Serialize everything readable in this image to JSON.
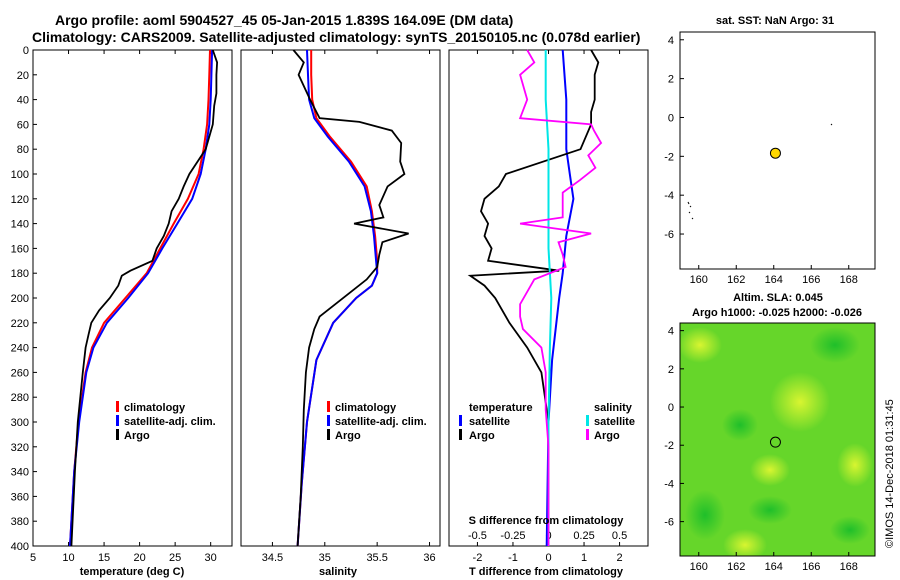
{
  "titles": {
    "line1": "Argo profile: aoml 5904527_45 05-Jan-2015 1.839S 164.09E (DM data)",
    "line2": "Climatology: CARS2009. Satellite-adjusted climatology: synTS_20150105.nc (0.078d earlier)"
  },
  "watermark": "©IMOS 14-Dec-2018 01:31:45",
  "colors": {
    "clim": "#ff0000",
    "sat": "#0000ff",
    "argo": "#000000",
    "sal_sat": "#00e6e6",
    "sal_diff": "#ff00ff"
  },
  "chart_data": [
    {
      "type": "line",
      "name": "temperature_profile",
      "xlabel": "temperature (deg C)",
      "ylabel": "",
      "xlim": [
        5,
        33
      ],
      "ylim": [
        400,
        0
      ],
      "xticks": [
        5,
        10,
        15,
        20,
        25,
        30
      ],
      "yticks": [
        0,
        20,
        40,
        60,
        80,
        100,
        120,
        140,
        160,
        180,
        200,
        220,
        240,
        260,
        280,
        300,
        320,
        340,
        360,
        380,
        400
      ],
      "legend": [
        "climatology",
        "satellite-adj. clim.",
        "Argo"
      ],
      "series": [
        {
          "name": "climatology",
          "color": "#ff0000",
          "depth": [
            0,
            20,
            40,
            60,
            80,
            100,
            120,
            140,
            160,
            180,
            200,
            220,
            240,
            260,
            300,
            340,
            400
          ],
          "values": [
            29.9,
            29.8,
            29.7,
            29.5,
            29.0,
            28.3,
            26.8,
            24.8,
            22.9,
            21.0,
            18.0,
            15.0,
            13.3,
            12.4,
            11.4,
            10.8,
            10.2
          ]
        },
        {
          "name": "satellite-adj. clim.",
          "color": "#0000ff",
          "depth": [
            0,
            20,
            40,
            60,
            80,
            100,
            120,
            140,
            160,
            180,
            200,
            220,
            240,
            260,
            300,
            340,
            400
          ],
          "values": [
            30.2,
            30.1,
            30.0,
            29.8,
            29.3,
            28.6,
            27.4,
            25.3,
            23.2,
            21.2,
            18.4,
            15.4,
            13.5,
            12.5,
            11.5,
            10.8,
            10.2
          ]
        },
        {
          "name": "Argo",
          "color": "#000000",
          "depth": [
            0,
            10,
            20,
            35,
            45,
            60,
            80,
            100,
            110,
            120,
            130,
            140,
            150,
            160,
            170,
            178,
            182,
            190,
            200,
            210,
            220,
            230,
            240,
            260,
            300,
            340,
            400
          ],
          "values": [
            30.3,
            30.9,
            30.8,
            30.8,
            30.5,
            30.3,
            29.3,
            27.0,
            26.2,
            25.5,
            24.5,
            24.1,
            23.4,
            22.4,
            21.8,
            18.7,
            17.5,
            17.0,
            15.8,
            14.3,
            13.2,
            12.8,
            12.4,
            12.0,
            11.3,
            10.9,
            10.4
          ]
        }
      ]
    },
    {
      "type": "line",
      "name": "salinity_profile",
      "xlabel": "salinity",
      "xlim": [
        34.2,
        36.1
      ],
      "ylim": [
        400,
        0
      ],
      "xticks": [
        34.5,
        35,
        35.5,
        36
      ],
      "legend": [
        "climatology",
        "satellite-adj. clim.",
        "Argo"
      ],
      "series": [
        {
          "name": "climatology",
          "color": "#ff0000",
          "depth": [
            0,
            20,
            40,
            55,
            70,
            90,
            110,
            130,
            150,
            170,
            180,
            190,
            200,
            220,
            250,
            300,
            350,
            400
          ],
          "values": [
            34.87,
            34.87,
            34.88,
            34.92,
            35.05,
            35.25,
            35.4,
            35.45,
            35.48,
            35.5,
            35.5,
            35.45,
            35.3,
            35.08,
            34.92,
            34.83,
            34.78,
            34.74
          ]
        },
        {
          "name": "satellite-adj. clim.",
          "color": "#0000ff",
          "depth": [
            0,
            20,
            40,
            55,
            70,
            90,
            110,
            130,
            150,
            170,
            180,
            190,
            200,
            220,
            250,
            300,
            350,
            400
          ],
          "values": [
            34.83,
            34.84,
            34.85,
            34.9,
            35.03,
            35.23,
            35.38,
            35.44,
            35.47,
            35.49,
            35.5,
            35.45,
            35.3,
            35.08,
            34.92,
            34.83,
            34.78,
            34.74
          ]
        },
        {
          "name": "Argo",
          "color": "#000000",
          "depth": [
            0,
            10,
            20,
            40,
            55,
            58,
            65,
            75,
            90,
            100,
            110,
            125,
            135,
            140,
            148,
            155,
            165,
            175,
            185,
            195,
            205,
            215,
            225,
            240,
            260,
            290,
            320,
            360,
            400
          ],
          "values": [
            34.7,
            34.8,
            34.75,
            34.86,
            34.95,
            35.33,
            35.64,
            35.73,
            35.72,
            35.76,
            35.6,
            35.52,
            35.56,
            35.28,
            35.8,
            35.55,
            35.52,
            35.5,
            35.4,
            35.25,
            35.1,
            34.95,
            34.9,
            34.85,
            34.82,
            34.8,
            34.79,
            34.77,
            34.74
          ]
        }
      ]
    },
    {
      "type": "line",
      "name": "difference_from_climatology",
      "xlabel": "T difference from climatology",
      "x2label": "S difference from climatology",
      "xlim": [
        -2.8,
        2.8
      ],
      "ylim": [
        400,
        0
      ],
      "xticks": [
        -2,
        -1,
        0,
        1,
        2
      ],
      "x2ticks": [
        -0.5,
        -0.25,
        0,
        0.25,
        0.5
      ],
      "legend_left_title": "temperature",
      "legend_right_title": "salinity",
      "legend": [
        "satellite",
        "Argo",
        "satellite",
        "Argo"
      ],
      "series": [
        {
          "name": "T satellite",
          "color": "#0000ff",
          "depth": [
            0,
            40,
            80,
            100,
            120,
            150,
            180,
            200,
            250,
            300,
            400
          ],
          "values": [
            0.4,
            0.5,
            0.5,
            0.6,
            0.7,
            0.5,
            0.4,
            0.3,
            0.1,
            0.0,
            -0.05
          ]
        },
        {
          "name": "T Argo",
          "color": "#000000",
          "depth": [
            0,
            10,
            20,
            40,
            50,
            60,
            80,
            100,
            110,
            120,
            130,
            140,
            150,
            160,
            170,
            178,
            182,
            190,
            200,
            220,
            240,
            260,
            300,
            350,
            400
          ],
          "values": [
            1.2,
            1.4,
            1.3,
            1.3,
            1.2,
            1.2,
            0.9,
            -1.2,
            -1.4,
            -1.8,
            -1.9,
            -1.7,
            -1.8,
            -1.6,
            -1.7,
            0.3,
            -2.2,
            -1.8,
            -1.5,
            -1.1,
            -0.6,
            -0.2,
            0.0,
            0.0,
            0.0
          ]
        },
        {
          "name": "S satellite",
          "color": "#00e6e6",
          "depth": [
            0,
            40,
            80,
            120,
            160,
            200,
            240,
            300,
            400
          ],
          "values": [
            -0.02,
            -0.02,
            0.0,
            0.0,
            0.0,
            0.02,
            0.01,
            0.0,
            0.0
          ]
        },
        {
          "name": "S Argo",
          "color": "#ff00ff",
          "depth": [
            0,
            10,
            20,
            40,
            55,
            60,
            65,
            75,
            85,
            95,
            105,
            115,
            125,
            135,
            140,
            148,
            155,
            165,
            175,
            185,
            195,
            205,
            215,
            225,
            240,
            260,
            290,
            320,
            360,
            400
          ],
          "values": [
            -0.15,
            -0.1,
            -0.2,
            -0.15,
            -0.2,
            0.3,
            0.32,
            0.37,
            0.28,
            0.33,
            0.22,
            0.1,
            0.1,
            0.1,
            -0.2,
            0.3,
            0.07,
            0.1,
            0.12,
            -0.1,
            -0.15,
            -0.2,
            -0.2,
            -0.18,
            -0.05,
            -0.02,
            -0.02,
            0.0,
            0.0,
            0.0
          ]
        }
      ]
    },
    {
      "type": "scatter",
      "name": "sst_map",
      "title": "sat. SST: NaN Argo: 31",
      "xlim": [
        159,
        169.4
      ],
      "ylim": [
        -7.8,
        4.4
      ],
      "xticks": [
        160,
        162,
        164,
        166,
        168
      ],
      "yticks": [
        4,
        2,
        0,
        -2,
        -4,
        -6
      ],
      "points": [
        {
          "lon": 164.09,
          "lat": -1.839,
          "label": "Argo float"
        }
      ]
    },
    {
      "type": "heatmap",
      "name": "sla_map",
      "title": "Altim. SLA: 0.045",
      "subtitle": "Argo h1000: -0.025 h2000: -0.026",
      "xlim": [
        159,
        169.4
      ],
      "ylim": [
        -7.8,
        4.4
      ],
      "xticks": [
        160,
        162,
        164,
        166,
        168
      ],
      "yticks": [
        4,
        2,
        0,
        -2,
        -4,
        -6
      ],
      "points": [
        {
          "lon": 164.09,
          "lat": -1.839,
          "label": "Argo float"
        }
      ]
    }
  ]
}
